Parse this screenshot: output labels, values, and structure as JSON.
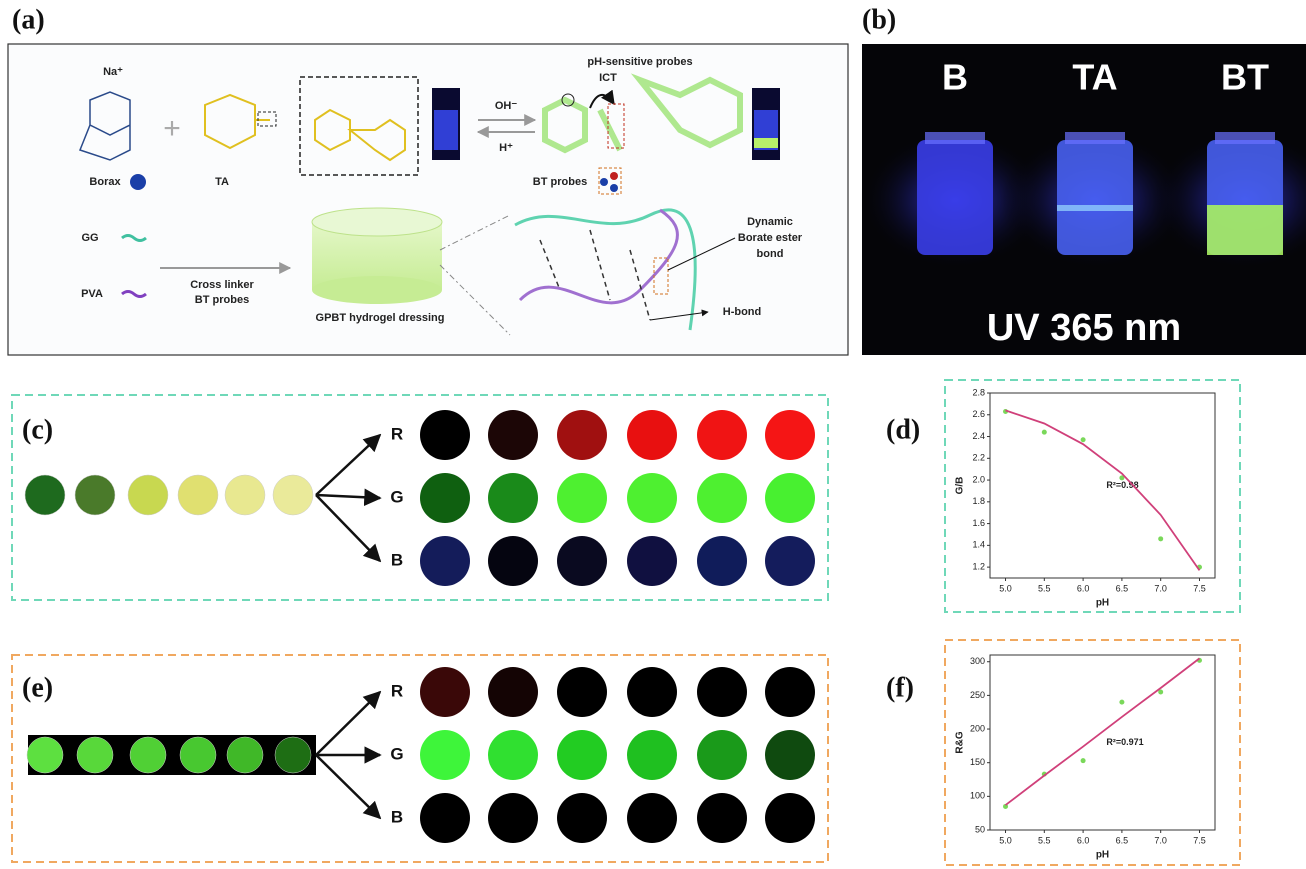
{
  "panels": {
    "a": {
      "label": "(a)",
      "heading": "pH-sensitive probes",
      "sodium": "Na⁺",
      "borax": "Borax",
      "ta": "TA",
      "base": "OH⁻",
      "acid": "H⁺",
      "ict": "ICT",
      "bt_probes": "BT probes",
      "gg": "GG",
      "pva": "PVA",
      "crosslinker": [
        "Cross linker",
        "BT probes"
      ],
      "hydrogel": "GPBT hydrogel dressing",
      "bond": [
        "Dynamic",
        "Borate ester",
        "bond"
      ],
      "hbond": "H-bond"
    },
    "b": {
      "label": "(b)",
      "vials": [
        "B",
        "TA",
        "BT"
      ],
      "caption": "UV 365 nm"
    },
    "c": {
      "label": "(c)",
      "channels": [
        "R",
        "G",
        "B"
      ],
      "samples": [
        "#1e6a1e",
        "#4a7a2a",
        "#c8d850",
        "#e0e070",
        "#e8e890",
        "#eaea9a"
      ],
      "rows": [
        [
          "#000000",
          "#1c0606",
          "#a01010",
          "#e81010",
          "#f01414",
          "#f51515"
        ],
        [
          "#0f6010",
          "#1a8a1a",
          "#4ef030",
          "#4ef030",
          "#4ef030",
          "#48f030"
        ],
        [
          "#141c5a",
          "#050510",
          "#0a0a20",
          "#101040",
          "#101c5a",
          "#141c5c"
        ]
      ]
    },
    "d": {
      "label": "(d)"
    },
    "e": {
      "label": "(e)",
      "channels": [
        "R",
        "G",
        "B"
      ],
      "samples": [
        "#5de040",
        "#58d83a",
        "#50d035",
        "#48c830",
        "#40b828",
        "#1e6e14"
      ],
      "rows": [
        [
          "#3a0808",
          "#140404",
          "#000000",
          "#000000",
          "#000000",
          "#000000"
        ],
        [
          "#3ef53a",
          "#30e030",
          "#22cc22",
          "#1fc020",
          "#1a9a1a",
          "#0f4a0f"
        ],
        [
          "#000000",
          "#000000",
          "#000000",
          "#000000",
          "#000000",
          "#000000"
        ]
      ]
    },
    "f": {
      "label": "(f)"
    }
  },
  "chart_data": [
    {
      "type": "scatter",
      "xlabel": "pH",
      "ylabel": "G/B",
      "annotation": "R²=0.98",
      "x": [
        5.0,
        5.5,
        6.0,
        6.5,
        7.0,
        7.5
      ],
      "series": [
        {
          "kind": "scatter",
          "color": "#7ad85a",
          "values": [
            2.63,
            2.44,
            2.37,
            2.02,
            1.46,
            1.2
          ]
        },
        {
          "kind": "line",
          "color": "#d0407a",
          "values": [
            2.64,
            2.52,
            2.33,
            2.06,
            1.68,
            1.17
          ]
        }
      ],
      "xlim": [
        4.8,
        7.7
      ],
      "ylim": [
        1.1,
        2.8
      ],
      "xticks": [
        {
          "value": 5.0,
          "label": "5.0"
        },
        5.5,
        {
          "value": 6.0,
          "label": "6.0"
        },
        6.5,
        {
          "value": 7.0,
          "label": "7.0"
        },
        7.5
      ],
      "yticks": [
        1.2,
        1.4,
        1.6,
        1.8,
        {
          "value": 2.0,
          "label": "2.0"
        },
        2.2,
        2.4,
        2.6,
        2.8
      ]
    },
    {
      "type": "scatter",
      "xlabel": "pH",
      "ylabel": "R&G",
      "annotation": "R²=0.971",
      "x": [
        5.0,
        5.5,
        6.0,
        6.5,
        7.0,
        7.5
      ],
      "series": [
        {
          "kind": "scatter",
          "color": "#7ad85a",
          "values": [
            85,
            133,
            153,
            240,
            255,
            302
          ]
        },
        {
          "kind": "line",
          "color": "#d0407a",
          "values": [
            87,
            131,
            174,
            218,
            261,
            305
          ]
        }
      ],
      "xlim": [
        4.8,
        7.7
      ],
      "ylim": [
        50,
        310
      ],
      "xticks": [
        {
          "value": 5.0,
          "label": "5.0"
        },
        5.5,
        {
          "value": 6.0,
          "label": "6.0"
        },
        6.5,
        {
          "value": 7.0,
          "label": "7.0"
        },
        7.5
      ],
      "yticks": [
        50,
        100,
        150,
        200,
        250,
        300
      ]
    }
  ]
}
